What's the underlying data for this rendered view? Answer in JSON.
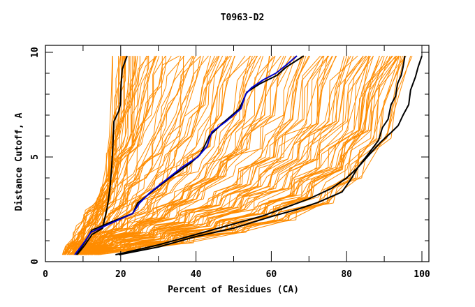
{
  "chart_data": {
    "type": "line",
    "title": "T0963-D2",
    "xlabel": "Percent of Residues (CA)",
    "ylabel": "Distance Cutoff, A",
    "xlim": [
      0,
      102
    ],
    "ylim": [
      0,
      10
    ],
    "x_ticks": [
      0,
      20,
      40,
      60,
      80,
      100
    ],
    "x_minor_ticks": [
      10,
      30,
      50,
      70,
      90
    ],
    "y_ticks": [
      0,
      5,
      10
    ],
    "y_minor_ticks": [
      1,
      2,
      3,
      4,
      6,
      7,
      8,
      9
    ],
    "grid": false,
    "legend": "none",
    "colors": {
      "background_models": "#ff8c00",
      "highlight_blue": "#0000cc",
      "highlight_black": "#000000",
      "axes": "#000000"
    },
    "highlight_series": [
      {
        "name": "black-steep",
        "color": "#000000",
        "points": [
          [
            8.4,
            0.33
          ],
          [
            10.5,
            0.8
          ],
          [
            12.4,
            1.3
          ],
          [
            15.2,
            1.6
          ],
          [
            16.3,
            2.5
          ],
          [
            16.7,
            2.9
          ],
          [
            17.2,
            3.6
          ],
          [
            17.6,
            4.5
          ],
          [
            17.9,
            5.5
          ],
          [
            18.2,
            6.7
          ],
          [
            19.5,
            7.2
          ],
          [
            19.9,
            7.5
          ],
          [
            20.1,
            8.4
          ],
          [
            20.4,
            9.2
          ],
          [
            21.7,
            9.83
          ]
        ]
      },
      {
        "name": "black-middle",
        "color": "#000000",
        "points": [
          [
            8.2,
            0.33
          ],
          [
            10.7,
            1.0
          ],
          [
            12.3,
            1.5
          ],
          [
            17.5,
            1.9
          ],
          [
            23.2,
            2.3
          ],
          [
            24.5,
            2.8
          ],
          [
            28,
            3.3
          ],
          [
            33,
            4.0
          ],
          [
            38.5,
            4.7
          ],
          [
            41,
            5.1
          ],
          [
            42.2,
            5.5
          ],
          [
            43.5,
            6.0
          ],
          [
            47,
            6.6
          ],
          [
            51.5,
            7.3
          ],
          [
            53.5,
            8.1
          ],
          [
            57,
            8.5
          ],
          [
            61.5,
            8.9
          ],
          [
            64,
            9.3
          ],
          [
            68.6,
            9.83
          ]
        ]
      },
      {
        "name": "blue-target",
        "color": "#0000cc",
        "points": [
          [
            7.8,
            0.33
          ],
          [
            10.2,
            0.9
          ],
          [
            12.1,
            1.4
          ],
          [
            17,
            1.8
          ],
          [
            23.2,
            2.3
          ],
          [
            25,
            2.8
          ],
          [
            27.8,
            3.3
          ],
          [
            32,
            3.9
          ],
          [
            36.2,
            4.5
          ],
          [
            40.5,
            5.0
          ],
          [
            42.9,
            5.5
          ],
          [
            44.2,
            6.2
          ],
          [
            48,
            6.7
          ],
          [
            51.9,
            7.3
          ],
          [
            53.2,
            8.0
          ],
          [
            54.7,
            8.3
          ],
          [
            58,
            8.7
          ],
          [
            61.2,
            9.0
          ],
          [
            64,
            9.4
          ],
          [
            66.8,
            9.83
          ]
        ]
      },
      {
        "name": "black-right-1",
        "color": "#000000",
        "points": [
          [
            18.6,
            0.33
          ],
          [
            30,
            0.8
          ],
          [
            40,
            1.3
          ],
          [
            50,
            1.8
          ],
          [
            58,
            2.2
          ],
          [
            64,
            2.6
          ],
          [
            70,
            3.0
          ],
          [
            76,
            3.5
          ],
          [
            80,
            4.0
          ],
          [
            83,
            4.5
          ],
          [
            86,
            5.2
          ],
          [
            88.5,
            5.8
          ],
          [
            89.5,
            6.4
          ],
          [
            91,
            6.8
          ],
          [
            91.8,
            7.5
          ],
          [
            93,
            7.9
          ],
          [
            93.5,
            8.5
          ],
          [
            94.5,
            8.9
          ],
          [
            95,
            9.3
          ],
          [
            95.5,
            9.83
          ]
        ]
      },
      {
        "name": "black-right-2",
        "color": "#000000",
        "points": [
          [
            19.5,
            0.33
          ],
          [
            30,
            0.7
          ],
          [
            40,
            1.2
          ],
          [
            50,
            1.6
          ],
          [
            60.3,
            2.17
          ],
          [
            67,
            2.5
          ],
          [
            72.4,
            2.83
          ],
          [
            78.8,
            3.33
          ],
          [
            81,
            3.9
          ],
          [
            83,
            4.5
          ],
          [
            86.3,
            5.17
          ],
          [
            89,
            5.7
          ],
          [
            92,
            6.2
          ],
          [
            93.7,
            6.5
          ],
          [
            95,
            7.0
          ],
          [
            96.5,
            7.5
          ],
          [
            97,
            8.2
          ],
          [
            98.3,
            8.83
          ],
          [
            99,
            9.3
          ],
          [
            100,
            9.83
          ]
        ]
      }
    ],
    "background_series_summary": {
      "count_estimate": 150,
      "color": "#ff8c00",
      "y_range": [
        0.33,
        9.83
      ],
      "x_start_range": [
        5,
        20
      ],
      "x_end_range": [
        17,
        100
      ],
      "description": "Many orange model curves (percent of residues vs distance cutoff) fanning out between the steep left black curve and the right black curves"
    },
    "background_series": [
      {
        "points": [
          [
            5.2,
            0.33
          ],
          [
            8,
            1.0
          ],
          [
            11,
            1.8
          ],
          [
            13,
            2.6
          ],
          [
            15,
            3.5
          ],
          [
            16,
            4.5
          ],
          [
            17,
            6
          ],
          [
            17.5,
            8
          ],
          [
            17.8,
            9.83
          ]
        ]
      },
      {
        "points": [
          [
            5.8,
            0.33
          ],
          [
            9,
            1.1
          ],
          [
            12,
            2.0
          ],
          [
            14.5,
            3.0
          ],
          [
            16.5,
            4.2
          ],
          [
            17.5,
            5.5
          ],
          [
            18.5,
            7
          ],
          [
            19.5,
            8.5
          ],
          [
            20,
            9.83
          ]
        ]
      },
      {
        "points": [
          [
            6.3,
            0.33
          ],
          [
            10,
            1.0
          ],
          [
            13,
            1.8
          ],
          [
            15,
            2.8
          ],
          [
            18,
            4.0
          ],
          [
            20,
            5.5
          ],
          [
            21,
            7
          ],
          [
            23,
            8.5
          ],
          [
            24,
            9.83
          ]
        ]
      },
      {
        "points": [
          [
            6.8,
            0.33
          ],
          [
            11,
            1.1
          ],
          [
            14,
            1.9
          ],
          [
            17,
            3.0
          ],
          [
            20,
            4.2
          ],
          [
            23,
            5.6
          ],
          [
            25,
            7
          ],
          [
            27,
            8.4
          ],
          [
            29,
            9.83
          ]
        ]
      },
      {
        "points": [
          [
            7.2,
            0.33
          ],
          [
            12,
            1.0
          ],
          [
            16,
            1.8
          ],
          [
            20,
            2.8
          ],
          [
            24,
            4.0
          ],
          [
            27,
            5.2
          ],
          [
            30,
            6.5
          ],
          [
            33,
            8
          ],
          [
            36,
            9.83
          ]
        ]
      },
      {
        "points": [
          [
            7.8,
            0.33
          ],
          [
            13,
            0.9
          ],
          [
            18,
            1.6
          ],
          [
            23,
            2.5
          ],
          [
            27,
            3.5
          ],
          [
            31,
            4.6
          ],
          [
            35,
            6
          ],
          [
            38,
            7.5
          ],
          [
            42,
            9.83
          ]
        ]
      },
      {
        "points": [
          [
            8.2,
            0.33
          ],
          [
            14,
            0.9
          ],
          [
            20,
            1.6
          ],
          [
            25,
            2.4
          ],
          [
            30,
            3.3
          ],
          [
            35,
            4.3
          ],
          [
            40,
            5.5
          ],
          [
            44,
            7
          ],
          [
            48,
            9.83
          ]
        ]
      },
      {
        "points": [
          [
            8.8,
            0.33
          ],
          [
            15,
            0.8
          ],
          [
            22,
            1.4
          ],
          [
            28,
            2.1
          ],
          [
            34,
            3.0
          ],
          [
            40,
            4.0
          ],
          [
            45,
            5.2
          ],
          [
            50,
            6.8
          ],
          [
            55,
            9.83
          ]
        ]
      },
      {
        "points": [
          [
            9.3,
            0.33
          ],
          [
            16,
            0.8
          ],
          [
            24,
            1.4
          ],
          [
            31,
            2.1
          ],
          [
            38,
            3.0
          ],
          [
            45,
            4.1
          ],
          [
            51,
            5.4
          ],
          [
            56,
            7
          ],
          [
            61,
            9.83
          ]
        ]
      },
      {
        "points": [
          [
            9.8,
            0.33
          ],
          [
            17,
            0.8
          ],
          [
            26,
            1.3
          ],
          [
            34,
            1.9
          ],
          [
            42,
            2.7
          ],
          [
            50,
            3.7
          ],
          [
            57,
            5.0
          ],
          [
            63,
            6.8
          ],
          [
            68,
            9.83
          ]
        ]
      },
      {
        "points": [
          [
            10.3,
            0.33
          ],
          [
            18,
            0.7
          ],
          [
            28,
            1.2
          ],
          [
            38,
            1.8
          ],
          [
            47,
            2.6
          ],
          [
            55,
            3.6
          ],
          [
            62,
            4.9
          ],
          [
            69,
            6.6
          ],
          [
            74,
            9.83
          ]
        ]
      },
      {
        "points": [
          [
            10.8,
            0.33
          ],
          [
            20,
            0.7
          ],
          [
            30,
            1.1
          ],
          [
            41,
            1.7
          ],
          [
            51,
            2.5
          ],
          [
            60,
            3.5
          ],
          [
            68,
            4.9
          ],
          [
            75,
            6.7
          ],
          [
            80,
            9.83
          ]
        ]
      },
      {
        "points": [
          [
            11.3,
            0.33
          ],
          [
            21,
            0.6
          ],
          [
            32,
            1.0
          ],
          [
            44,
            1.6
          ],
          [
            55,
            2.3
          ],
          [
            65,
            3.2
          ],
          [
            73,
            4.5
          ],
          [
            80,
            6.3
          ],
          [
            86,
            9.83
          ]
        ]
      },
      {
        "points": [
          [
            12,
            0.33
          ],
          [
            22,
            0.6
          ],
          [
            34,
            1.0
          ],
          [
            47,
            1.5
          ],
          [
            58,
            2.2
          ],
          [
            68,
            3.1
          ],
          [
            77,
            4.4
          ],
          [
            84,
            6.3
          ],
          [
            90,
            9.83
          ]
        ]
      },
      {
        "points": [
          [
            13,
            0.33
          ],
          [
            24,
            0.6
          ],
          [
            36,
            0.9
          ],
          [
            50,
            1.4
          ],
          [
            62,
            2.0
          ],
          [
            72,
            2.8
          ],
          [
            80,
            4.0
          ],
          [
            87,
            5.9
          ],
          [
            94,
            9.83
          ]
        ]
      },
      {
        "points": [
          [
            14,
            0.33
          ],
          [
            26,
            0.6
          ],
          [
            38,
            0.9
          ],
          [
            52,
            1.4
          ],
          [
            65,
            2.0
          ],
          [
            75,
            2.9
          ],
          [
            84,
            4.1
          ],
          [
            91,
            6.2
          ],
          [
            97,
            9.83
          ]
        ]
      }
    ]
  }
}
